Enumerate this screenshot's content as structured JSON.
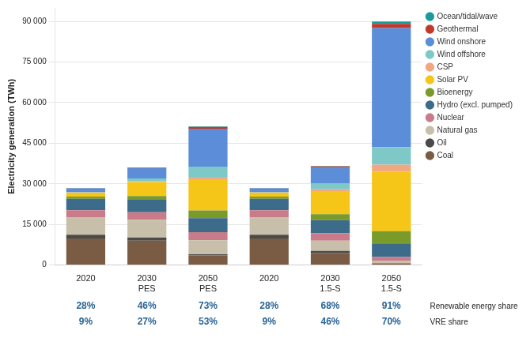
{
  "chart_data": {
    "type": "bar",
    "stacked": true,
    "categories": [
      [
        "2020"
      ],
      [
        "2030",
        "PES"
      ],
      [
        "2050",
        "PES"
      ],
      [
        "2020"
      ],
      [
        "2030",
        "1.5-S"
      ],
      [
        "2050",
        "1.5-S"
      ]
    ],
    "series": [
      {
        "name": "Coal",
        "color": "#7a5c44",
        "values": [
          9800,
          9000,
          3500,
          9800,
          4500,
          500
        ]
      },
      {
        "name": "Oil",
        "color": "#4a4a4a",
        "values": [
          1400,
          1200,
          450,
          1400,
          700,
          80
        ]
      },
      {
        "name": "Natural gas",
        "color": "#c8bfaa",
        "values": [
          6300,
          6500,
          5200,
          6300,
          3800,
          900
        ]
      },
      {
        "name": "Nuclear",
        "color": "#c97b8a",
        "values": [
          2700,
          2800,
          3000,
          2700,
          2800,
          1500
        ]
      },
      {
        "name": "Hydro (excl. pumped)",
        "color": "#3d6b8a",
        "values": [
          4300,
          4600,
          5200,
          4300,
          4800,
          5000
        ]
      },
      {
        "name": "Bioenergy",
        "color": "#7a9a2a",
        "values": [
          800,
          1400,
          2800,
          800,
          2200,
          4500
        ]
      },
      {
        "name": "Solar PV",
        "color": "#f5c518",
        "values": [
          1400,
          5200,
          11500,
          1400,
          8500,
          22000
        ]
      },
      {
        "name": "CSP",
        "color": "#f0a882",
        "values": [
          80,
          350,
          900,
          80,
          700,
          2600
        ]
      },
      {
        "name": "Wind offshore",
        "color": "#7ec8c8",
        "values": [
          150,
          900,
          3800,
          150,
          2200,
          6500
        ]
      },
      {
        "name": "Wind onshore",
        "color": "#5b8dd9",
        "values": [
          1400,
          3800,
          14000,
          1400,
          5800,
          44000
        ]
      },
      {
        "name": "Geothermal",
        "color": "#c0392b",
        "values": [
          90,
          200,
          700,
          90,
          450,
          1500
        ]
      },
      {
        "name": "Ocean/tidal/wave",
        "color": "#1a9a9a",
        "values": [
          30,
          80,
          200,
          30,
          150,
          900
        ]
      }
    ],
    "ylabel": "Electricity generation (TWh)",
    "ylim": [
      0,
      95000
    ],
    "yticks": [
      0,
      {
        "value": 15000,
        "label": "15 000"
      },
      {
        "value": 30000,
        "label": "30 000"
      },
      {
        "value": 45000,
        "label": "45 000"
      },
      {
        "value": 60000,
        "label": "60 000"
      },
      {
        "value": 75000,
        "label": "75 000"
      },
      {
        "value": 90000,
        "label": "90 000"
      }
    ],
    "grid": true,
    "legend": "right",
    "annotations": [
      {
        "text": "Renewable energy share",
        "color": "#2a6496",
        "values": [
          28,
          46,
          73,
          28,
          68,
          91
        ],
        "value_labels": [
          "28%",
          "46%",
          "73%",
          "28%",
          "68%",
          "91%"
        ]
      },
      {
        "text": "VRE share",
        "color": "#2a6496",
        "values": [
          9,
          27,
          53,
          9,
          46,
          70
        ],
        "value_labels": [
          "9%",
          "27%",
          "53%",
          "9%",
          "46%",
          "70%"
        ]
      }
    ]
  }
}
